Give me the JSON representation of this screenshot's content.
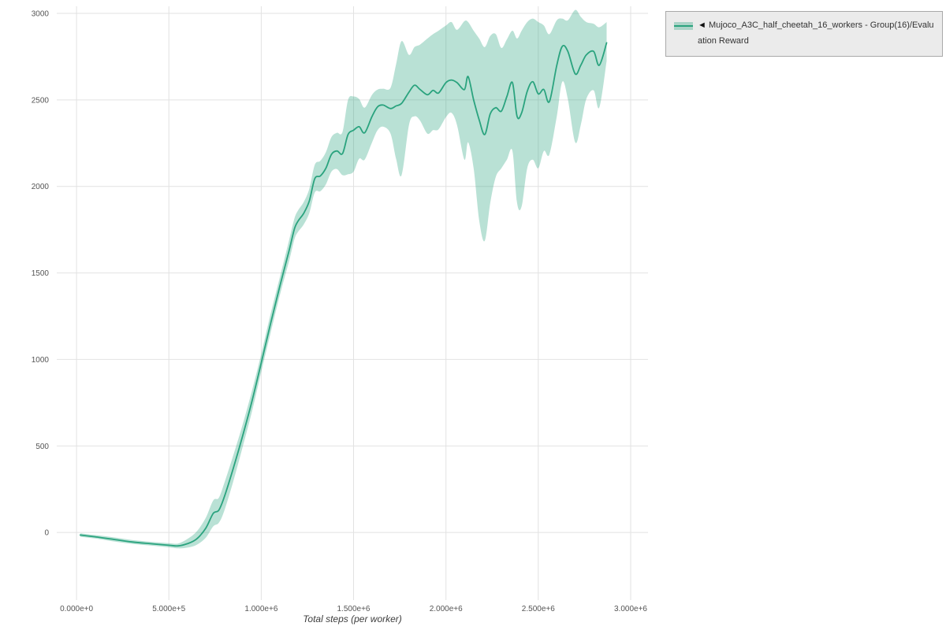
{
  "chart_data": {
    "type": "line",
    "title": "",
    "xlabel": "Total steps (per worker)",
    "ylabel": "",
    "grid": true,
    "x_scale_note": "x values in millions of steps",
    "xlim": [
      -0.107,
      3.094
    ],
    "ylim": [
      -391,
      3041
    ],
    "x_ticks": [
      {
        "v": 0.0,
        "label": "0.000e+0"
      },
      {
        "v": 0.5,
        "label": "5.000e+5"
      },
      {
        "v": 1.0,
        "label": "1.000e+6"
      },
      {
        "v": 1.5,
        "label": "1.500e+6"
      },
      {
        "v": 2.0,
        "label": "2.000e+6"
      },
      {
        "v": 2.5,
        "label": "2.500e+6"
      },
      {
        "v": 3.0,
        "label": "3.000e+6"
      }
    ],
    "y_ticks": [
      {
        "v": 0,
        "label": "0"
      },
      {
        "v": 500,
        "label": "500"
      },
      {
        "v": 1000,
        "label": "1000"
      },
      {
        "v": 1500,
        "label": "1500"
      },
      {
        "v": 2000,
        "label": "2000"
      },
      {
        "v": 2500,
        "label": "2500"
      },
      {
        "v": 3000,
        "label": "3000"
      }
    ],
    "legend": {
      "position": "top-right-outside",
      "marker": "◄",
      "label": "Mujoco_A3C_half_cheetah_16_workers - Group(16)/Evaluation Reward"
    },
    "style": {
      "line_color": "#2aa37e",
      "band_color": "rgba(42,163,126,0.33)",
      "grid_color": "#e2e2e2"
    },
    "series": [
      {
        "name": "Mujoco_A3C_half_cheetah_16_workers - Group(16)/Evaluation Reward",
        "x": [
          0.02,
          0.1,
          0.2,
          0.3,
          0.4,
          0.5,
          0.55,
          0.6,
          0.65,
          0.7,
          0.74,
          0.77,
          0.8,
          0.85,
          0.9,
          0.95,
          1.0,
          1.05,
          1.1,
          1.15,
          1.18,
          1.2,
          1.23,
          1.26,
          1.29,
          1.32,
          1.35,
          1.38,
          1.41,
          1.44,
          1.47,
          1.5,
          1.53,
          1.56,
          1.6,
          1.63,
          1.66,
          1.7,
          1.73,
          1.76,
          1.8,
          1.83,
          1.86,
          1.9,
          1.93,
          1.96,
          2.0,
          2.03,
          2.06,
          2.1,
          2.12,
          2.15,
          2.18,
          2.21,
          2.24,
          2.27,
          2.3,
          2.33,
          2.36,
          2.385,
          2.41,
          2.44,
          2.47,
          2.5,
          2.53,
          2.56,
          2.6,
          2.63,
          2.66,
          2.7,
          2.73,
          2.76,
          2.8,
          2.83,
          2.87
        ],
        "mean": [
          -15,
          -25,
          -40,
          -55,
          -65,
          -74,
          -78,
          -65,
          -38,
          25,
          110,
          128,
          205,
          375,
          560,
          760,
          980,
          1205,
          1420,
          1625,
          1755,
          1800,
          1845,
          1915,
          2045,
          2060,
          2105,
          2185,
          2205,
          2190,
          2300,
          2325,
          2345,
          2310,
          2405,
          2460,
          2470,
          2450,
          2465,
          2480,
          2545,
          2585,
          2560,
          2530,
          2555,
          2540,
          2600,
          2615,
          2600,
          2560,
          2635,
          2500,
          2385,
          2300,
          2420,
          2455,
          2435,
          2520,
          2600,
          2405,
          2425,
          2550,
          2605,
          2535,
          2560,
          2490,
          2700,
          2810,
          2780,
          2650,
          2700,
          2760,
          2780,
          2700,
          2830
        ],
        "low": [
          -25,
          -35,
          -52,
          -66,
          -76,
          -86,
          -92,
          -88,
          -72,
          -30,
          35,
          55,
          125,
          300,
          495,
          700,
          928,
          1150,
          1368,
          1565,
          1695,
          1738,
          1780,
          1845,
          1965,
          1972,
          2012,
          2085,
          2100,
          2065,
          2070,
          2085,
          2160,
          2155,
          2255,
          2325,
          2345,
          2305,
          2160,
          2065,
          2355,
          2405,
          2380,
          2305,
          2325,
          2330,
          2400,
          2425,
          2355,
          2155,
          2255,
          2105,
          1805,
          1685,
          1905,
          2055,
          2105,
          2155,
          2205,
          1905,
          1885,
          2105,
          2155,
          2105,
          2205,
          2185,
          2405,
          2605,
          2505,
          2255,
          2355,
          2505,
          2555,
          2455,
          2725
        ],
        "high": [
          -5,
          -15,
          -28,
          -44,
          -54,
          -62,
          -64,
          -38,
          5,
          85,
          185,
          200,
          285,
          450,
          625,
          820,
          1032,
          1260,
          1472,
          1685,
          1815,
          1862,
          1910,
          1985,
          2125,
          2148,
          2198,
          2285,
          2310,
          2315,
          2500,
          2520,
          2505,
          2455,
          2530,
          2560,
          2565,
          2570,
          2705,
          2840,
          2760,
          2805,
          2820,
          2855,
          2880,
          2900,
          2930,
          2950,
          2905,
          2955,
          2950,
          2900,
          2855,
          2805,
          2870,
          2880,
          2800,
          2850,
          2900,
          2855,
          2900,
          2950,
          2970,
          2950,
          2930,
          2880,
          2960,
          2970,
          2960,
          3020,
          2980,
          2950,
          2940,
          2920,
          2950
        ]
      }
    ]
  }
}
